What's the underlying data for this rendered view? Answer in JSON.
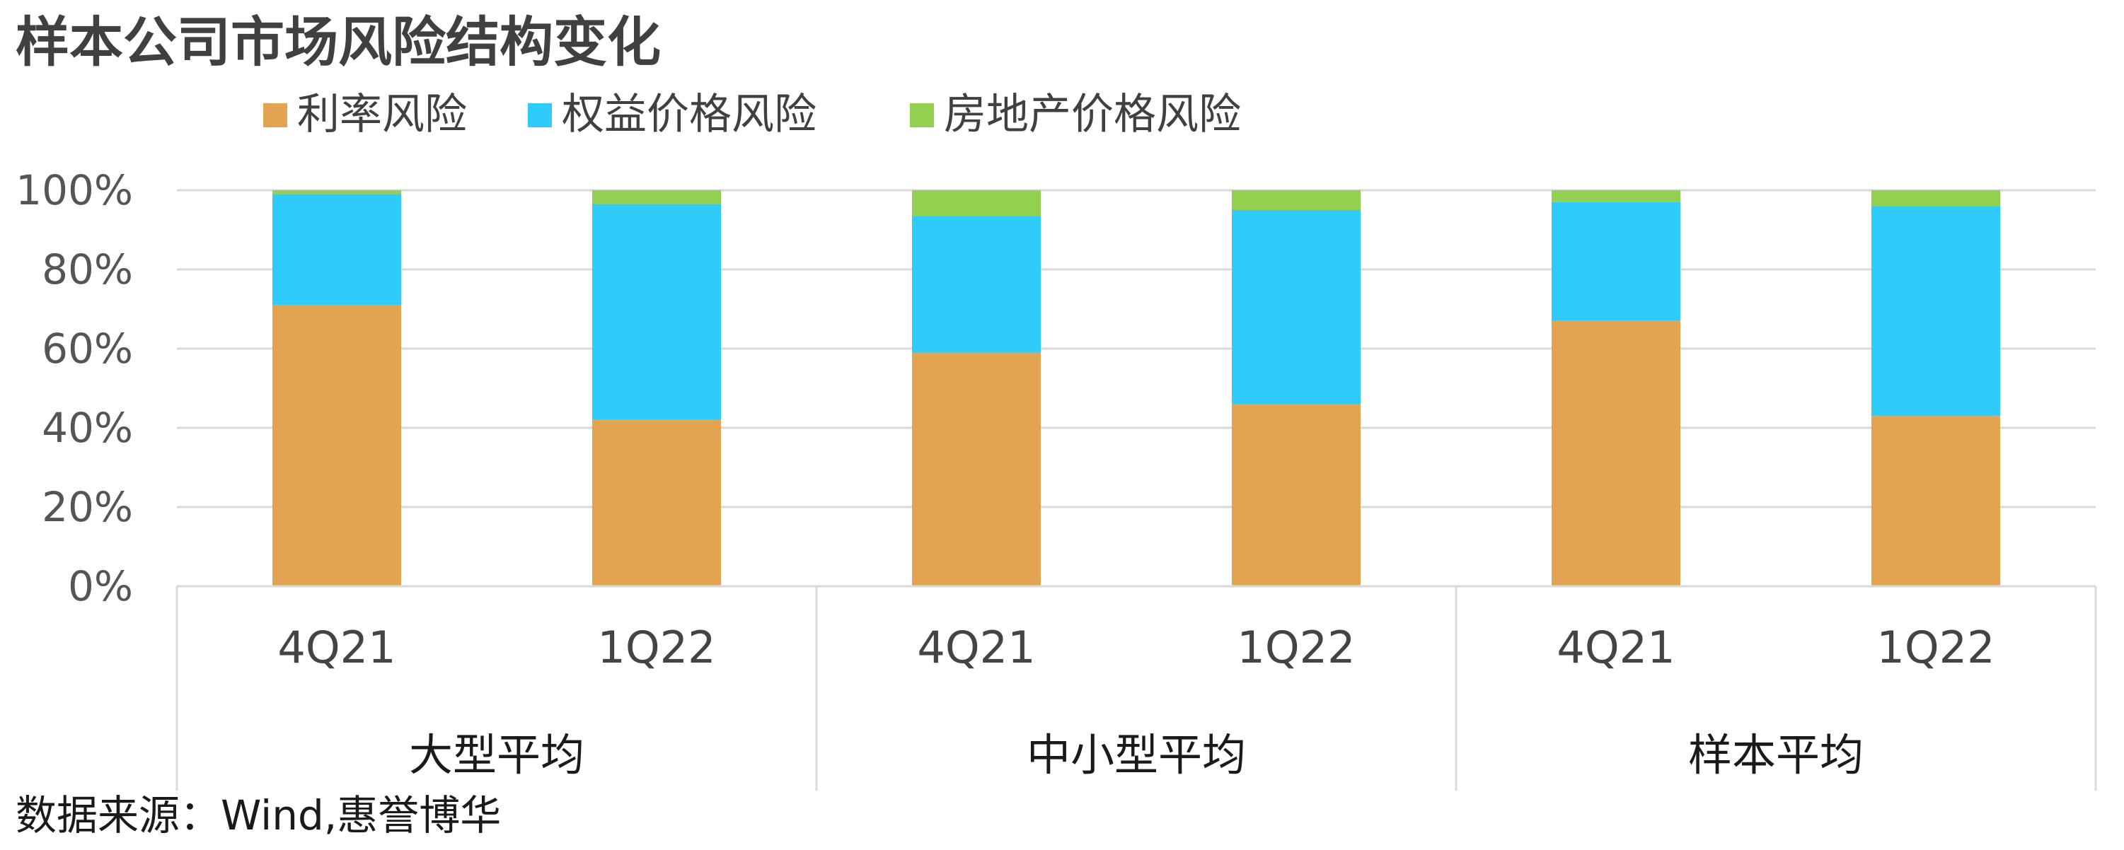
{
  "title": "样本公司市场风险结构变化",
  "source": "数据来源：Wind,惠誉博华",
  "chart_data": {
    "type": "bar",
    "stacked": true,
    "percent": true,
    "ylim": [
      0,
      100
    ],
    "yticks": [
      "0%",
      "20%",
      "40%",
      "60%",
      "80%",
      "100%"
    ],
    "grid": true,
    "legend_position": "top",
    "groups": [
      {
        "label": "大型平均",
        "categories": [
          "4Q21",
          "1Q22"
        ]
      },
      {
        "label": "中小型平均",
        "categories": [
          "4Q21",
          "1Q22"
        ]
      },
      {
        "label": "样本平均",
        "categories": [
          "4Q21",
          "1Q22"
        ]
      }
    ],
    "categories": [
      "4Q21",
      "1Q22",
      "4Q21",
      "1Q22",
      "4Q21",
      "1Q22"
    ],
    "series": [
      {
        "name": "利率风险",
        "color": "#E3A452",
        "values": [
          71,
          42,
          59,
          46,
          67,
          43
        ]
      },
      {
        "name": "权益价格风险",
        "color": "#2ECBFB",
        "values": [
          28,
          54.5,
          34.5,
          49,
          30,
          53
        ]
      },
      {
        "name": "房地产价格风险",
        "color": "#92D050",
        "values": [
          1,
          3.5,
          6.5,
          5,
          3,
          4
        ]
      }
    ]
  }
}
